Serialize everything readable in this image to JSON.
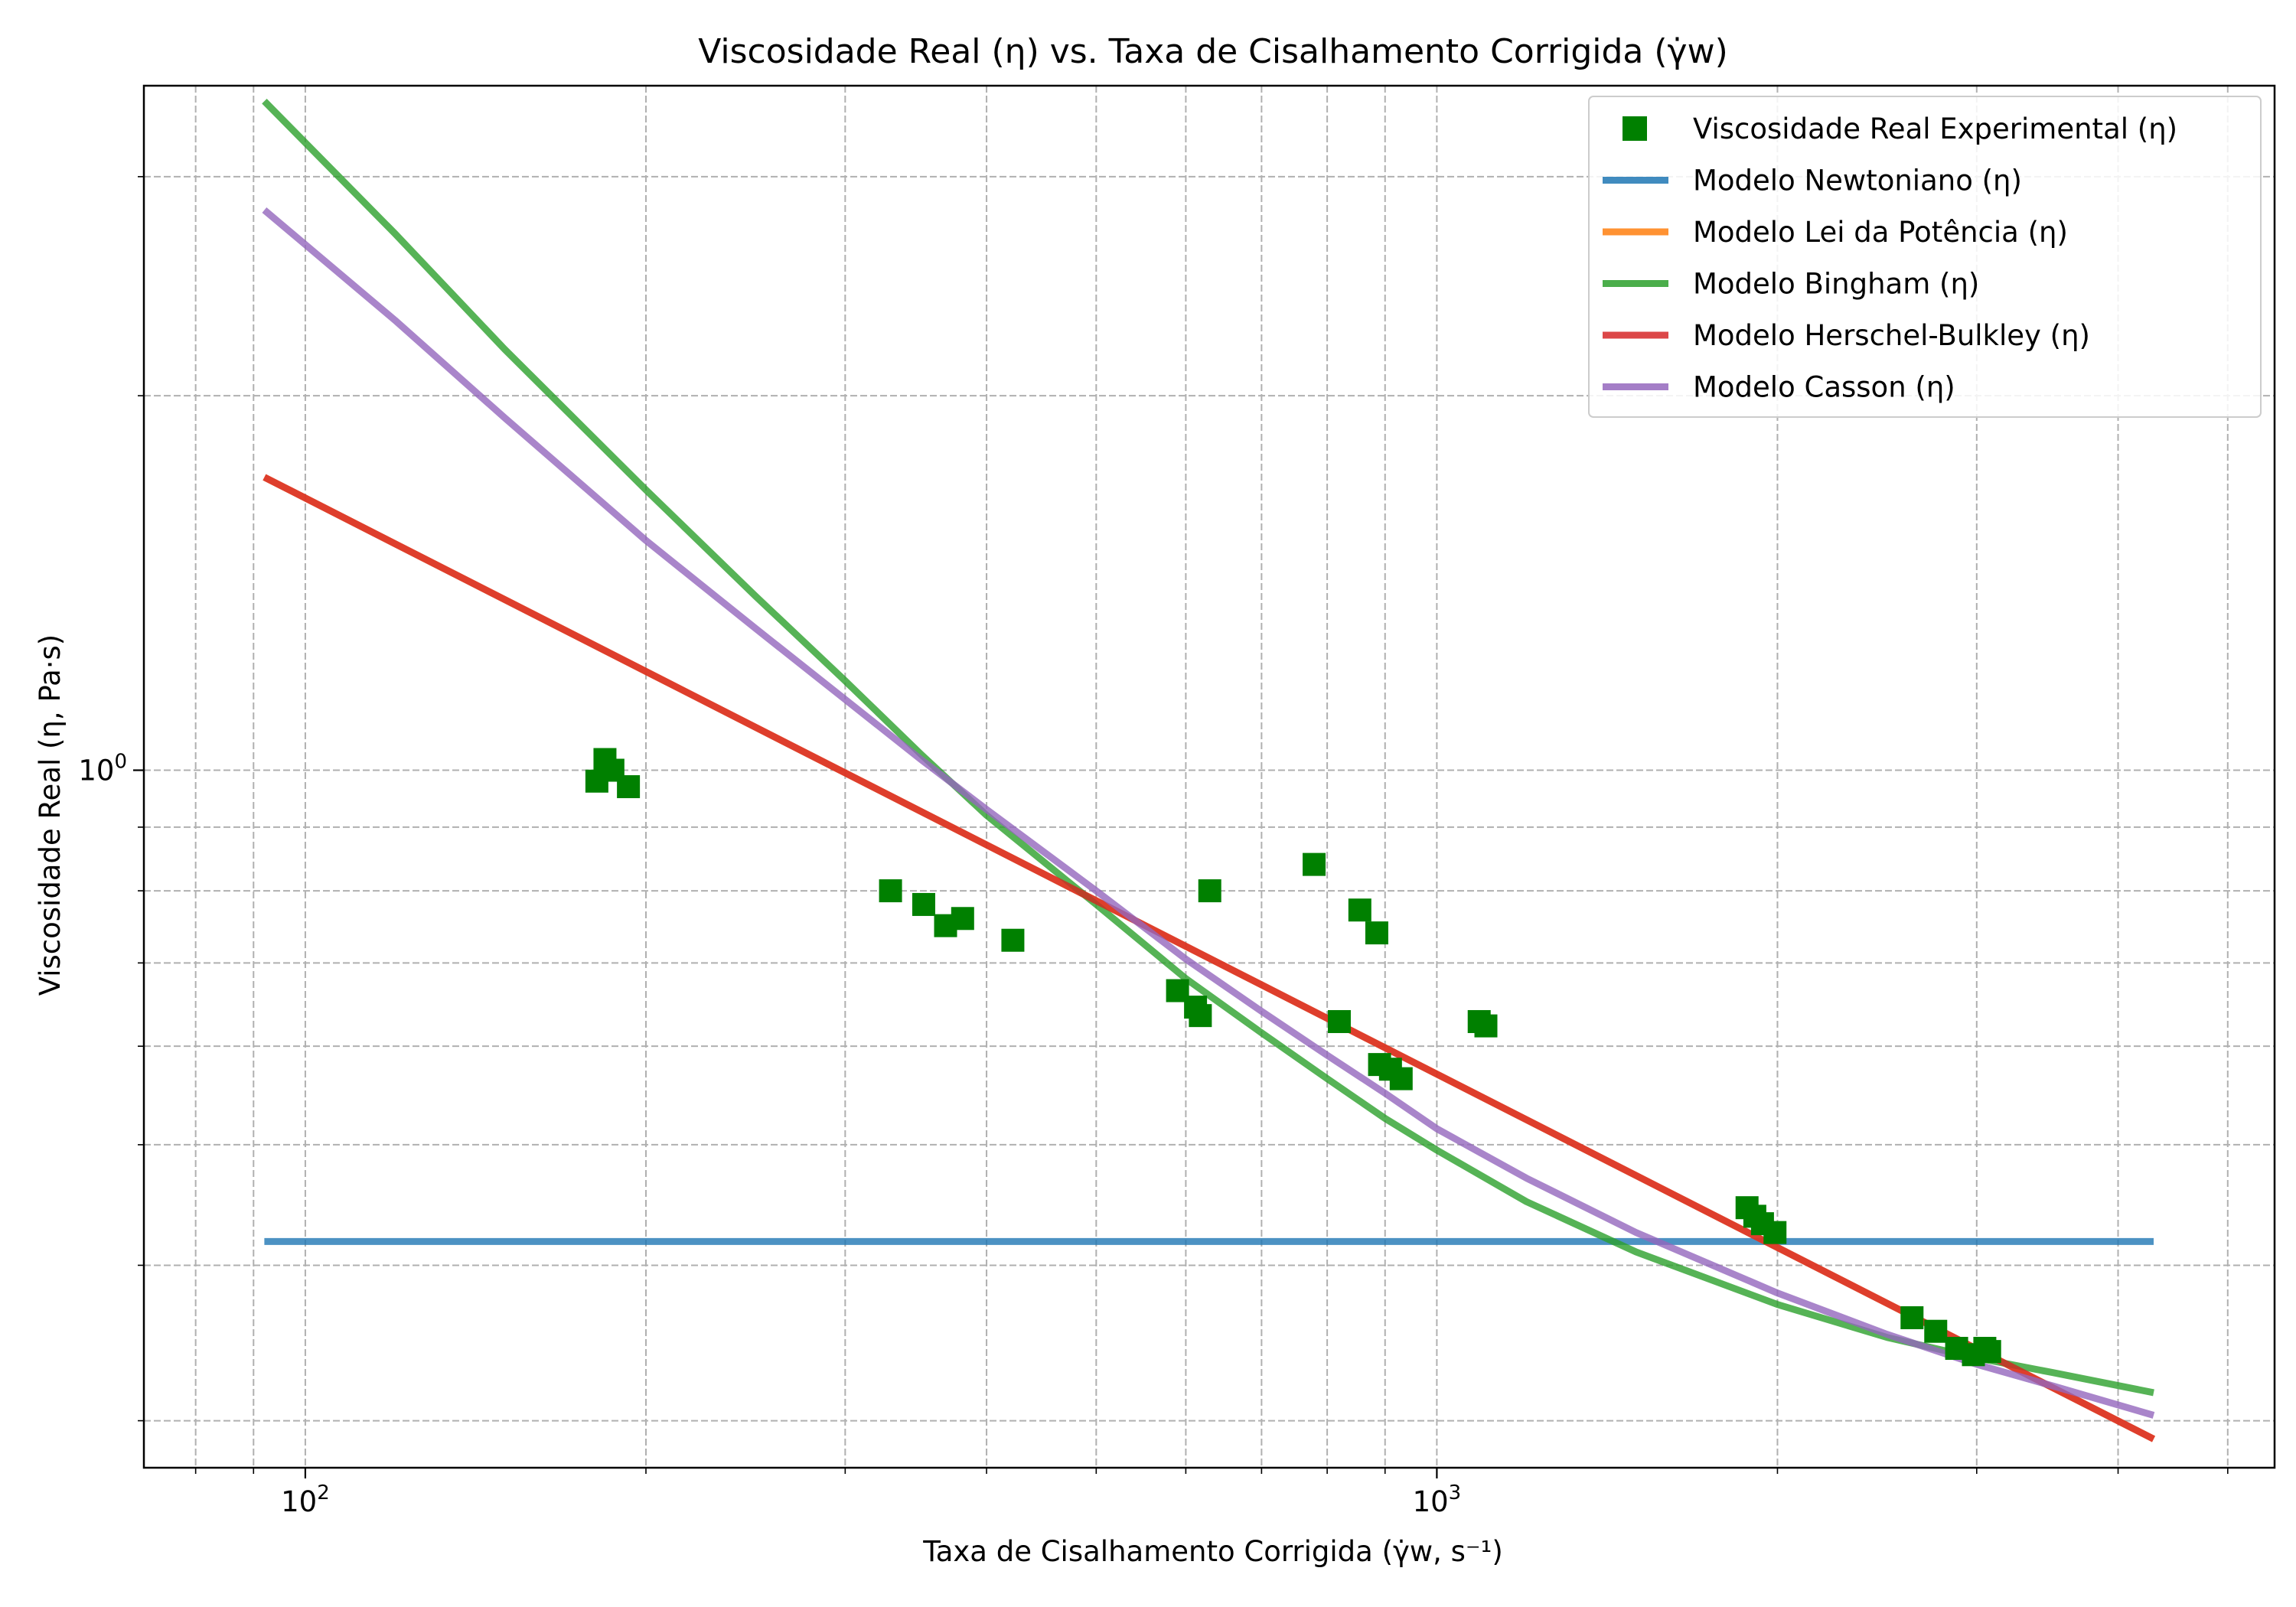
{
  "chart_data": {
    "type": "scatter",
    "title": "Viscosidade Real (η) vs. Taxa de Cisalhamento Corrigida (γ̇w)",
    "xlabel": "Taxa de Cisalhamento Corrigida (γ̇w, s⁻¹)",
    "ylabel": "Viscosidade Real (η, Pa·s)",
    "x_scale": "log",
    "y_scale": "log",
    "xlim": [
      72,
      5500
    ],
    "ylim": [
      0.275,
      3.55
    ],
    "grid": true,
    "grid_style": "dashed",
    "legend_position": "top-right",
    "x_major_ticks": [
      {
        "value": 100,
        "base": "10",
        "exp": "2"
      },
      {
        "value": 1000,
        "base": "10",
        "exp": "3"
      }
    ],
    "y_major_ticks": [
      {
        "value": 1,
        "base": "10",
        "exp": "0"
      }
    ],
    "x_minor_ticks": [
      80,
      90,
      200,
      300,
      400,
      500,
      600,
      700,
      800,
      900,
      2000,
      3000,
      4000,
      5000
    ],
    "y_minor_ticks": [
      0.3,
      0.4,
      0.5,
      0.6,
      0.7,
      0.8,
      0.9,
      2,
      3
    ],
    "scatter": {
      "name": "Viscosidade Real Experimental (η)",
      "color": "#008000",
      "marker": "square",
      "points": [
        {
          "x": 181,
          "y": 0.98
        },
        {
          "x": 184,
          "y": 1.02
        },
        {
          "x": 187,
          "y": 1.0
        },
        {
          "x": 193,
          "y": 0.97
        },
        {
          "x": 329,
          "y": 0.8
        },
        {
          "x": 352,
          "y": 0.78
        },
        {
          "x": 368,
          "y": 0.75
        },
        {
          "x": 381,
          "y": 0.76
        },
        {
          "x": 422,
          "y": 0.73
        },
        {
          "x": 590,
          "y": 0.665
        },
        {
          "x": 612,
          "y": 0.645
        },
        {
          "x": 618,
          "y": 0.635
        },
        {
          "x": 630,
          "y": 0.8
        },
        {
          "x": 779,
          "y": 0.84
        },
        {
          "x": 820,
          "y": 0.628
        },
        {
          "x": 855,
          "y": 0.772
        },
        {
          "x": 885,
          "y": 0.74
        },
        {
          "x": 890,
          "y": 0.58
        },
        {
          "x": 910,
          "y": 0.575
        },
        {
          "x": 930,
          "y": 0.565
        },
        {
          "x": 1090,
          "y": 0.628
        },
        {
          "x": 1105,
          "y": 0.623
        },
        {
          "x": 1880,
          "y": 0.445
        },
        {
          "x": 1910,
          "y": 0.438
        },
        {
          "x": 1940,
          "y": 0.432
        },
        {
          "x": 1990,
          "y": 0.425
        },
        {
          "x": 2630,
          "y": 0.363
        },
        {
          "x": 2760,
          "y": 0.354
        },
        {
          "x": 2880,
          "y": 0.343
        },
        {
          "x": 2980,
          "y": 0.339
        },
        {
          "x": 3050,
          "y": 0.343
        },
        {
          "x": 3080,
          "y": 0.341
        }
      ]
    },
    "series": [
      {
        "name": "Modelo Newtoniano (η)",
        "color": "#1f77b4",
        "x": [
          92,
          4300
        ],
        "y": [
          0.418,
          0.418
        ]
      },
      {
        "name": "Modelo Lei da Potência (η)",
        "color": "#ff7f0e",
        "x": [
          92,
          4300
        ],
        "y": [
          1.72,
          0.29
        ]
      },
      {
        "name": "Modelo Bingham (η)",
        "color": "#2ca02c",
        "x": [
          92,
          120,
          150,
          200,
          250,
          300,
          350,
          400,
          500,
          600,
          700,
          800,
          900,
          1000,
          1200,
          1500,
          2000,
          2500,
          3000,
          3500,
          4300
        ],
        "y": [
          3.45,
          2.7,
          2.18,
          1.68,
          1.38,
          1.18,
          1.03,
          0.92,
          0.78,
          0.68,
          0.615,
          0.565,
          0.525,
          0.495,
          0.45,
          0.41,
          0.372,
          0.35,
          0.337,
          0.328,
          0.316
        ]
      },
      {
        "name": "Modelo Herschel-Bulkley (η)",
        "color": "#d62728",
        "x": [
          92,
          4300
        ],
        "y": [
          1.72,
          0.29
        ]
      },
      {
        "name": "Modelo Casson (η)",
        "color": "#9467bd",
        "x": [
          92,
          120,
          150,
          200,
          250,
          300,
          350,
          400,
          500,
          600,
          700,
          800,
          900,
          1000,
          1200,
          1500,
          2000,
          2500,
          3000,
          3500,
          4300
        ],
        "y": [
          2.82,
          2.3,
          1.92,
          1.53,
          1.3,
          1.14,
          1.02,
          0.93,
          0.8,
          0.705,
          0.64,
          0.59,
          0.55,
          0.515,
          0.47,
          0.425,
          0.38,
          0.352,
          0.333,
          0.32,
          0.303
        ]
      }
    ]
  }
}
